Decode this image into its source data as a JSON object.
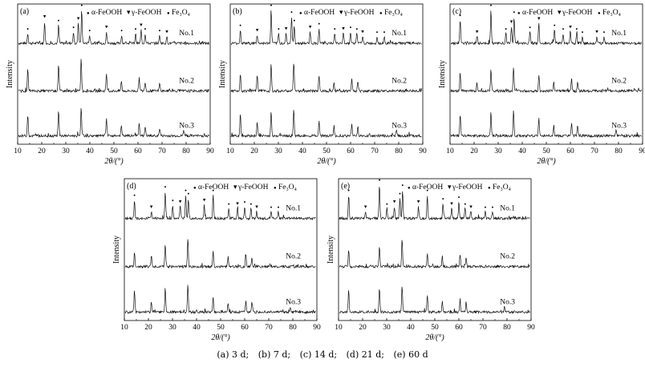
{
  "chart_data": [
    {
      "type": "line",
      "panel_label": "(a)",
      "title": "",
      "xlabel": "2θ/(°)",
      "ylabel": "Intensity",
      "xlim": [
        10,
        90
      ],
      "xticks": [
        10,
        20,
        30,
        40,
        50,
        60,
        70,
        80,
        90
      ],
      "legend": [
        "α-FeOOH",
        "γ-FeOOH",
        "Fe3O4"
      ],
      "series": [
        {
          "name": "No.1",
          "peaks": [
            [
              14.2,
              0.3
            ],
            [
              21.2,
              0.65
            ],
            [
              27.0,
              0.55
            ],
            [
              33.2,
              0.35
            ],
            [
              35.2,
              0.6
            ],
            [
              36.6,
              1.0
            ],
            [
              39.9,
              0.25
            ],
            [
              46.9,
              0.35
            ],
            [
              53.2,
              0.25
            ],
            [
              59.0,
              0.3
            ],
            [
              61.3,
              0.4
            ],
            [
              63.0,
              0.3
            ],
            [
              69.0,
              0.25
            ],
            [
              72.0,
              0.2
            ]
          ]
        },
        {
          "name": "No.2",
          "peaks": [
            [
              14.2,
              0.55
            ],
            [
              27.0,
              0.7
            ],
            [
              36.4,
              0.85
            ],
            [
              46.9,
              0.45
            ],
            [
              53.1,
              0.25
            ],
            [
              60.5,
              0.35
            ],
            [
              63.0,
              0.25
            ],
            [
              69.0,
              0.2
            ]
          ]
        },
        {
          "name": "No.3",
          "peaks": [
            [
              14.2,
              0.55
            ],
            [
              27.0,
              0.65
            ],
            [
              36.4,
              0.75
            ],
            [
              46.9,
              0.45
            ],
            [
              53.1,
              0.25
            ],
            [
              60.5,
              0.35
            ],
            [
              63.0,
              0.25
            ],
            [
              69.0,
              0.2
            ],
            [
              79.0,
              0.15
            ]
          ]
        }
      ]
    },
    {
      "type": "line",
      "panel_label": "(b)",
      "title": "",
      "xlabel": "",
      "ylabel": "Intensity",
      "xlim": [
        10,
        90
      ],
      "xticks": [
        10,
        20,
        30,
        40,
        50,
        60,
        70,
        80,
        90
      ],
      "legend": [
        "α-FeOOH",
        "γ-FeOOH",
        "Fe3O4"
      ],
      "series": [
        {
          "name": "No.1",
          "peaks": [
            [
              14.2,
              0.4
            ],
            [
              21.2,
              0.25
            ],
            [
              27.0,
              1.0
            ],
            [
              30.1,
              0.3
            ],
            [
              33.2,
              0.3
            ],
            [
              35.5,
              0.8
            ],
            [
              36.6,
              0.55
            ],
            [
              43.2,
              0.35
            ],
            [
              46.9,
              0.45
            ],
            [
              53.4,
              0.3
            ],
            [
              57.0,
              0.3
            ],
            [
              60.0,
              0.35
            ],
            [
              62.6,
              0.3
            ],
            [
              65.0,
              0.2
            ],
            [
              71.0,
              0.2
            ],
            [
              74.0,
              0.2
            ]
          ]
        },
        {
          "name": "No.2",
          "peaks": [
            [
              14.2,
              0.45
            ],
            [
              21.2,
              0.4
            ],
            [
              27.0,
              0.7
            ],
            [
              36.4,
              0.75
            ],
            [
              46.9,
              0.4
            ],
            [
              53.1,
              0.25
            ],
            [
              60.5,
              0.3
            ],
            [
              63.0,
              0.25
            ]
          ]
        },
        {
          "name": "No.3",
          "peaks": [
            [
              14.2,
              0.55
            ],
            [
              21.2,
              0.35
            ],
            [
              27.0,
              0.6
            ],
            [
              36.4,
              0.7
            ],
            [
              46.9,
              0.4
            ],
            [
              53.1,
              0.25
            ],
            [
              60.5,
              0.3
            ],
            [
              63.0,
              0.25
            ],
            [
              79.0,
              0.15
            ]
          ]
        }
      ]
    },
    {
      "type": "line",
      "panel_label": "(c)",
      "title": "",
      "xlabel": "2θ/(°)",
      "ylabel": "Intensity",
      "xlim": [
        10,
        90
      ],
      "xticks": [
        10,
        20,
        30,
        40,
        50,
        60,
        70,
        80,
        90
      ],
      "legend": [
        "α-FeOOH",
        "γ-FeOOH",
        "Fe3O4"
      ],
      "series": [
        {
          "name": "No.1",
          "peaks": [
            [
              14.2,
              0.7
            ],
            [
              21.2,
              0.2
            ],
            [
              27.0,
              1.0
            ],
            [
              33.2,
              0.3
            ],
            [
              35.5,
              0.5
            ],
            [
              36.6,
              0.8
            ],
            [
              43.2,
              0.35
            ],
            [
              46.9,
              0.6
            ],
            [
              53.4,
              0.4
            ],
            [
              57.0,
              0.3
            ],
            [
              60.0,
              0.35
            ],
            [
              62.6,
              0.3
            ],
            [
              65.0,
              0.2
            ],
            [
              71.0,
              0.2
            ],
            [
              74.0,
              0.2
            ]
          ]
        },
        {
          "name": "No.2",
          "peaks": [
            [
              14.2,
              0.45
            ],
            [
              21.2,
              0.2
            ],
            [
              27.0,
              0.55
            ],
            [
              36.4,
              0.6
            ],
            [
              46.9,
              0.4
            ],
            [
              53.1,
              0.25
            ],
            [
              60.5,
              0.3
            ],
            [
              63.0,
              0.25
            ]
          ]
        },
        {
          "name": "No.3",
          "peaks": [
            [
              14.2,
              0.55
            ],
            [
              27.0,
              0.6
            ],
            [
              36.4,
              0.65
            ],
            [
              46.9,
              0.45
            ],
            [
              53.1,
              0.25
            ],
            [
              60.5,
              0.3
            ],
            [
              63.0,
              0.25
            ],
            [
              79.0,
              0.15
            ]
          ]
        }
      ]
    },
    {
      "type": "line",
      "panel_label": "(d)",
      "title": "",
      "xlabel": "2θ/(°)",
      "ylabel": "Intensity",
      "xlim": [
        10,
        90
      ],
      "xticks": [
        10,
        20,
        30,
        40,
        50,
        60,
        70,
        80,
        90
      ],
      "legend": [
        "α-FeOOH",
        "γ-FeOOH",
        "Fe3O4"
      ],
      "series": [
        {
          "name": "No.1",
          "peaks": [
            [
              14.2,
              0.55
            ],
            [
              21.2,
              0.2
            ],
            [
              27.0,
              0.8
            ],
            [
              30.1,
              0.4
            ],
            [
              33.2,
              0.35
            ],
            [
              35.5,
              0.7
            ],
            [
              36.6,
              0.6
            ],
            [
              43.2,
              0.4
            ],
            [
              46.9,
              0.7
            ],
            [
              53.4,
              0.3
            ],
            [
              57.0,
              0.3
            ],
            [
              60.0,
              0.35
            ],
            [
              62.6,
              0.3
            ],
            [
              65.0,
              0.2
            ],
            [
              71.0,
              0.2
            ],
            [
              74.0,
              0.2
            ]
          ]
        },
        {
          "name": "No.2",
          "peaks": [
            [
              14.2,
              0.35
            ],
            [
              21.2,
              0.3
            ],
            [
              27.0,
              0.6
            ],
            [
              36.4,
              0.7
            ],
            [
              46.9,
              0.4
            ],
            [
              53.1,
              0.25
            ],
            [
              60.5,
              0.3
            ],
            [
              63.0,
              0.25
            ]
          ]
        },
        {
          "name": "No.3",
          "peaks": [
            [
              14.2,
              0.55
            ],
            [
              21.2,
              0.25
            ],
            [
              27.0,
              0.6
            ],
            [
              36.4,
              0.7
            ],
            [
              46.9,
              0.4
            ],
            [
              53.1,
              0.25
            ],
            [
              60.5,
              0.3
            ],
            [
              63.0,
              0.25
            ],
            [
              79.0,
              0.15
            ]
          ]
        }
      ]
    },
    {
      "type": "line",
      "panel_label": "(e)",
      "title": "",
      "xlabel": "2θ/(°)",
      "ylabel": "Intensity",
      "xlim": [
        10,
        90
      ],
      "xticks": [
        10,
        20,
        30,
        40,
        50,
        60,
        70,
        80,
        90
      ],
      "legend": [
        "α-FeOOH",
        "γ-FeOOH",
        "Fe3O4"
      ],
      "series": [
        {
          "name": "No.1",
          "peaks": [
            [
              14.2,
              0.7
            ],
            [
              21.2,
              0.2
            ],
            [
              27.0,
              1.0
            ],
            [
              30.1,
              0.3
            ],
            [
              33.2,
              0.35
            ],
            [
              35.5,
              0.6
            ],
            [
              36.6,
              0.85
            ],
            [
              43.2,
              0.35
            ],
            [
              46.9,
              0.7
            ],
            [
              53.4,
              0.45
            ],
            [
              57.0,
              0.3
            ],
            [
              60.0,
              0.5
            ],
            [
              62.6,
              0.3
            ],
            [
              65.0,
              0.2
            ],
            [
              71.0,
              0.2
            ],
            [
              74.0,
              0.2
            ]
          ]
        },
        {
          "name": "No.2",
          "peaks": [
            [
              14.2,
              0.45
            ],
            [
              27.0,
              0.55
            ],
            [
              36.4,
              0.7
            ],
            [
              46.9,
              0.35
            ],
            [
              53.1,
              0.25
            ],
            [
              60.5,
              0.3
            ],
            [
              63.0,
              0.25
            ]
          ]
        },
        {
          "name": "No.3",
          "peaks": [
            [
              14.2,
              0.55
            ],
            [
              27.0,
              0.6
            ],
            [
              36.4,
              0.65
            ],
            [
              46.9,
              0.45
            ],
            [
              53.1,
              0.25
            ],
            [
              60.5,
              0.3
            ],
            [
              63.0,
              0.25
            ],
            [
              79.0,
              0.15
            ]
          ]
        }
      ]
    }
  ],
  "legend_labels": {
    "alpha": "α-FeOOH",
    "gamma": "γ-FeOOH",
    "fe3o4": "Fe₃O₄"
  },
  "caption": [
    "(a) 3 d;",
    "(b) 7 d;",
    "(c) 14 d;",
    "(d) 21 d;",
    "(e) 60 d"
  ]
}
